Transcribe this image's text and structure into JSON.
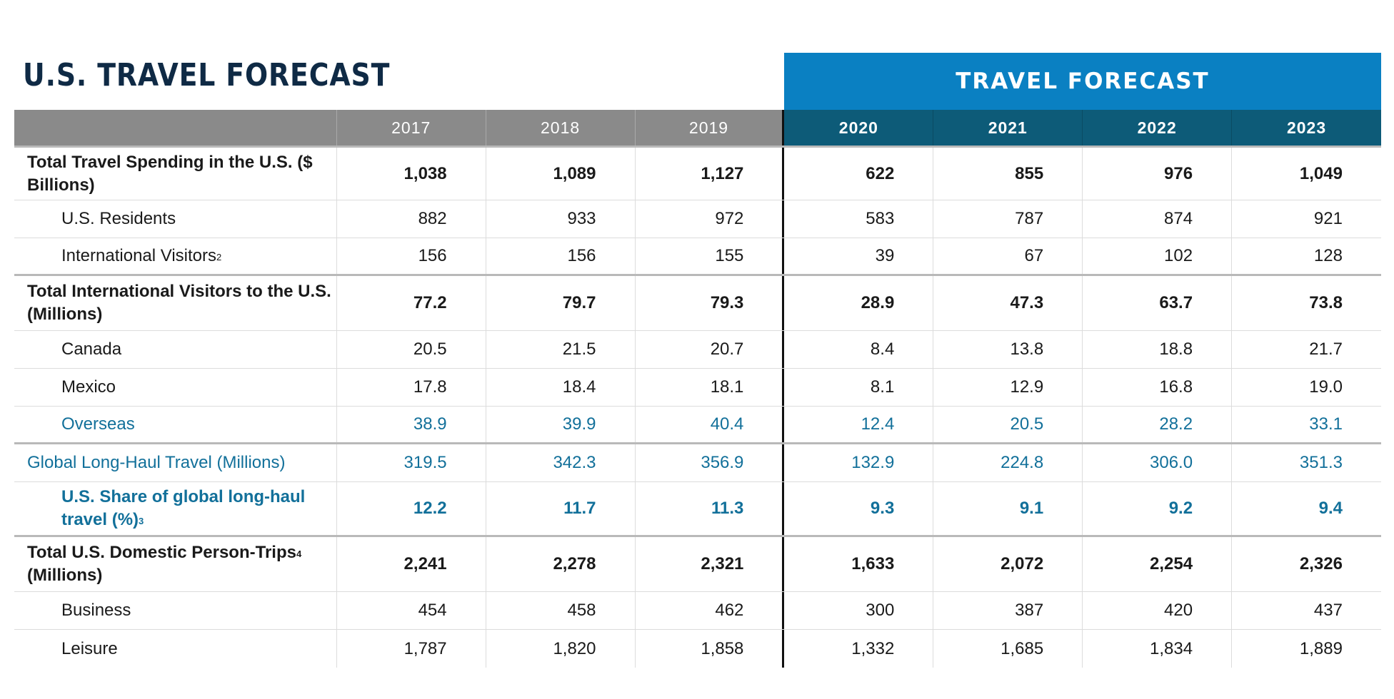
{
  "title": "U.S. TRAVEL FORECAST",
  "forecast_banner": "TRAVEL FORECAST",
  "colors": {
    "title": "#0f2a45",
    "banner": "#0a80c2",
    "forecast_header": "#0d5b78",
    "history_header": "#8a8a8a",
    "highlight_text": "#12709a"
  },
  "years": [
    "2017",
    "2018",
    "2019",
    "2020",
    "2021",
    "2022",
    "2023"
  ],
  "rows": [
    {
      "label": "Total Travel Spending in the U.S. ($ Billions)",
      "values": [
        "1,038",
        "1,089",
        "1,127",
        "622",
        "855",
        "976",
        "1,049"
      ]
    },
    {
      "label": "U.S. Residents",
      "values": [
        "882",
        "933",
        "972",
        "583",
        "787",
        "874",
        "921"
      ]
    },
    {
      "label": "International Visitors",
      "sup": "2",
      "values": [
        "156",
        "156",
        "155",
        "39",
        "67",
        "102",
        "128"
      ]
    },
    {
      "label": "Total International Visitors to the U.S. (Millions)",
      "values": [
        "77.2",
        "79.7",
        "79.3",
        "28.9",
        "47.3",
        "63.7",
        "73.8"
      ]
    },
    {
      "label": "Canada",
      "values": [
        "20.5",
        "21.5",
        "20.7",
        "8.4",
        "13.8",
        "18.8",
        "21.7"
      ]
    },
    {
      "label": "Mexico",
      "values": [
        "17.8",
        "18.4",
        "18.1",
        "8.1",
        "12.9",
        "16.8",
        "19.0"
      ]
    },
    {
      "label": "Overseas",
      "values": [
        "38.9",
        "39.9",
        "40.4",
        "12.4",
        "20.5",
        "28.2",
        "33.1"
      ]
    },
    {
      "label": "Global Long-Haul Travel (Millions)",
      "values": [
        "319.5",
        "342.3",
        "356.9",
        "132.9",
        "224.8",
        "306.0",
        "351.3"
      ]
    },
    {
      "label": "U.S. Share of global long-haul travel (%)",
      "sup": "3",
      "values": [
        "12.2",
        "11.7",
        "11.3",
        "9.3",
        "9.1",
        "9.2",
        "9.4"
      ]
    },
    {
      "label_part1": "Total U.S. Domestic Person-Trips",
      "sup": "4",
      "label_part2": " (Millions)",
      "values": [
        "2,241",
        "2,278",
        "2,321",
        "1,633",
        "2,072",
        "2,254",
        "2,326"
      ]
    },
    {
      "label": "Business",
      "values": [
        "454",
        "458",
        "462",
        "300",
        "387",
        "420",
        "437"
      ]
    },
    {
      "label": "Leisure",
      "values": [
        "1,787",
        "1,820",
        "1,858",
        "1,332",
        "1,685",
        "1,834",
        "1,889"
      ]
    }
  ]
}
